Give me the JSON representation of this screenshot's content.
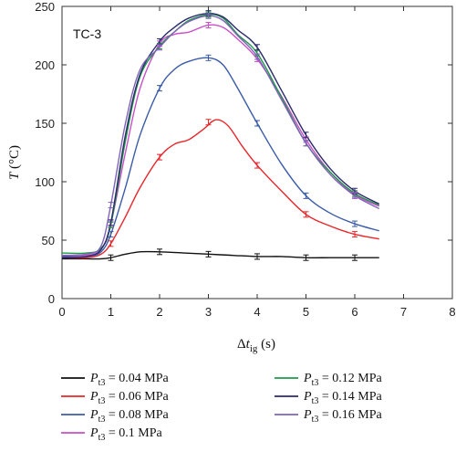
{
  "chart_data": {
    "type": "line",
    "annotation": "TC-3",
    "xlabel": {
      "main": "Δ",
      "italic": "t",
      "sub": "ig",
      "unit": " (s)"
    },
    "ylabel": {
      "italic": "T",
      "unit": " (°C)"
    },
    "xlim": [
      0,
      8
    ],
    "ylim": [
      0,
      250
    ],
    "xticks": [
      "0",
      "1",
      "2",
      "3",
      "4",
      "5",
      "6",
      "7",
      "8"
    ],
    "yticks": [
      "0",
      "50",
      "100",
      "150",
      "200",
      "250"
    ],
    "grid": false,
    "legend_position": "bottom",
    "series": [
      {
        "name": "0.04 MPa",
        "color": "#111111",
        "x": [
          0,
          0.5,
          0.8,
          1.0,
          1.3,
          1.6,
          2.0,
          2.5,
          3.0,
          3.5,
          4.0,
          4.5,
          5.0,
          5.5,
          6.0,
          6.5
        ],
        "y": [
          34,
          34,
          34,
          35,
          38,
          40,
          40,
          39,
          38,
          37,
          36,
          36,
          35,
          35,
          35,
          35
        ],
        "err_x": [
          1,
          2,
          3,
          4,
          5,
          6
        ],
        "err_y": [
          35,
          40,
          38,
          36,
          35,
          35
        ]
      },
      {
        "name": "0.06 MPa",
        "color": "#e8262a",
        "x": [
          0,
          0.5,
          0.8,
          1.0,
          1.3,
          1.6,
          2.0,
          2.3,
          2.6,
          2.9,
          3.15,
          3.4,
          3.7,
          4.0,
          4.5,
          5.0,
          5.5,
          6.0,
          6.5
        ],
        "y": [
          35,
          35,
          38,
          47,
          70,
          95,
          121,
          132,
          136,
          145,
          153,
          148,
          130,
          114,
          92,
          72,
          62,
          55,
          51
        ],
        "err_x": [
          1,
          2,
          3,
          4,
          5,
          6
        ],
        "err_y": [
          47,
          121,
          151,
          114,
          72,
          55
        ]
      },
      {
        "name": "0.08 MPa",
        "color": "#3a5ba8",
        "x": [
          0,
          0.5,
          0.8,
          1.0,
          1.3,
          1.6,
          2.0,
          2.3,
          2.6,
          3.0,
          3.3,
          3.6,
          4.0,
          4.5,
          5.0,
          5.5,
          6.0,
          6.5
        ],
        "y": [
          36,
          36,
          40,
          55,
          95,
          140,
          180,
          196,
          203,
          206,
          200,
          180,
          150,
          115,
          88,
          73,
          64,
          58
        ],
        "err_x": [
          1,
          2,
          3,
          4,
          5,
          6
        ],
        "err_y": [
          55,
          180,
          206,
          150,
          88,
          64
        ]
      },
      {
        "name": "0.1 MPa",
        "color": "#c84fc8",
        "x": [
          0,
          0.5,
          0.8,
          1.0,
          1.3,
          1.6,
          2.0,
          2.3,
          2.6,
          3.0,
          3.3,
          3.6,
          4.0,
          4.5,
          5.0,
          5.5,
          6.0,
          6.5
        ],
        "y": [
          37,
          37,
          42,
          64,
          125,
          180,
          218,
          226,
          228,
          234,
          232,
          222,
          205,
          173,
          136,
          108,
          89,
          79
        ],
        "err_x": [
          1,
          2,
          3,
          4,
          5,
          6
        ],
        "err_y": [
          64,
          218,
          234,
          205,
          136,
          89
        ]
      },
      {
        "name": "0.12 MPa",
        "color": "#1f9a48",
        "x": [
          0,
          0.5,
          0.8,
          1.0,
          1.3,
          1.6,
          2.0,
          2.3,
          2.6,
          3.0,
          3.3,
          3.6,
          4.0,
          4.5,
          5.0,
          5.5,
          6.0,
          6.5
        ],
        "y": [
          39,
          39,
          43,
          63,
          135,
          190,
          216,
          228,
          238,
          243,
          240,
          226,
          210,
          172,
          133,
          108,
          90,
          80
        ],
        "err_x": [
          1,
          2,
          3,
          4,
          5,
          6
        ],
        "err_y": [
          63,
          216,
          243,
          210,
          133,
          90
        ]
      },
      {
        "name": "0.14 MPa",
        "color": "#2b2a6b",
        "x": [
          0,
          0.5,
          0.8,
          1.0,
          1.3,
          1.6,
          2.0,
          2.3,
          2.6,
          3.0,
          3.3,
          3.6,
          4.0,
          4.5,
          5.0,
          5.5,
          6.0,
          6.5
        ],
        "y": [
          35,
          36,
          42,
          65,
          140,
          192,
          220,
          232,
          240,
          244,
          241,
          230,
          215,
          178,
          140,
          111,
          92,
          81
        ],
        "err_x": [
          1,
          2,
          3,
          4,
          5,
          6
        ],
        "err_y": [
          65,
          220,
          244,
          215,
          140,
          92
        ]
      },
      {
        "name": "0.16 MPa",
        "color": "#7e63b8",
        "x": [
          0,
          0.5,
          0.8,
          1.0,
          1.3,
          1.6,
          2.0,
          2.3,
          2.6,
          3.0,
          3.3,
          3.6,
          4.0,
          4.5,
          5.0,
          5.5,
          6.0,
          6.5
        ],
        "y": [
          37,
          38,
          45,
          80,
          150,
          196,
          215,
          228,
          237,
          242,
          238,
          225,
          207,
          170,
          133,
          106,
          88,
          77
        ],
        "err_x": [
          1,
          2,
          3,
          4,
          5,
          6
        ],
        "err_y": [
          80,
          215,
          242,
          207,
          133,
          88
        ]
      }
    ],
    "legend_prefix": {
      "italic": "P",
      "sub": "t3",
      "eq": " = "
    }
  }
}
